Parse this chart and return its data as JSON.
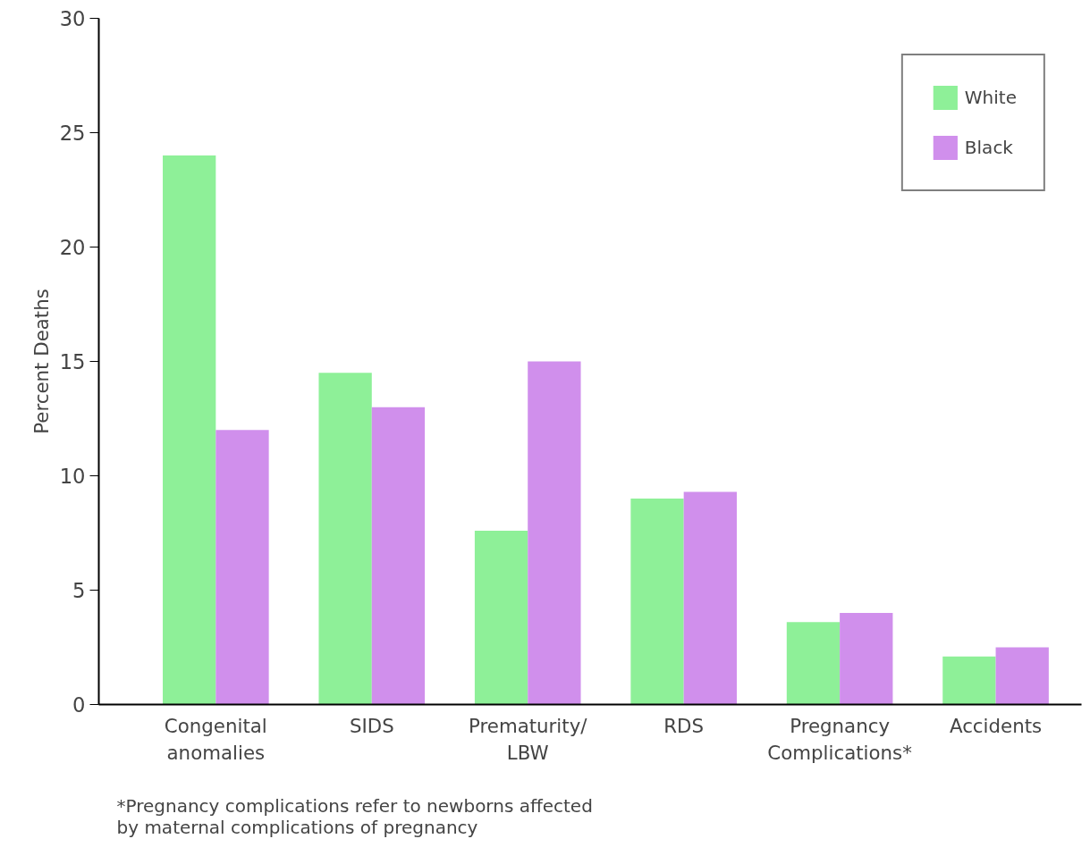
{
  "chart_data": {
    "type": "bar",
    "ylabel": "Percent Deaths",
    "categories": [
      "Congenital\nanomalies",
      "SIDS",
      "Prematurity/\nLBW",
      "RDS",
      "Pregnancy\nComplications*",
      "Accidents"
    ],
    "series": [
      {
        "name": "White",
        "color": "#8ef098",
        "values": [
          24.0,
          14.5,
          7.6,
          9.0,
          3.6,
          2.1
        ]
      },
      {
        "name": "Black",
        "color": "#d08fec",
        "values": [
          12.0,
          13.0,
          15.0,
          9.3,
          4.0,
          2.5
        ]
      }
    ],
    "ylim": [
      0,
      30
    ],
    "yticks": [
      0,
      5,
      10,
      15,
      20,
      25,
      30
    ],
    "grid": false,
    "legend": "top right",
    "annotations": [
      "*Pregnancy complications refer to newborns affected\nby maternal complications of pregnancy"
    ]
  }
}
